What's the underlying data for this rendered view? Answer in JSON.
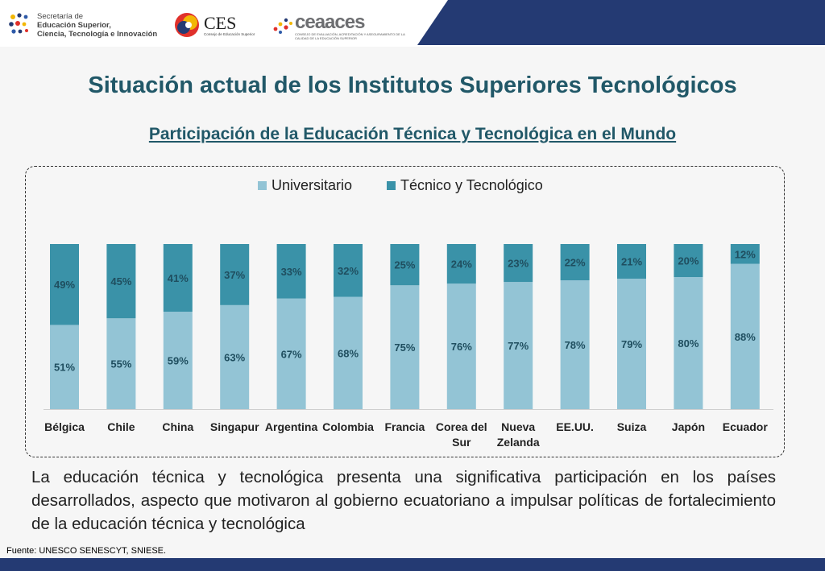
{
  "header": {
    "logo_senescyt": {
      "line1": "Secretaría de",
      "line2": "Educación Superior,",
      "line3": "Ciencia, Tecnología e Innovación"
    },
    "logo_ces": {
      "name": "CES",
      "sub": "Consejo de Educación Superior"
    },
    "logo_ceaaces": {
      "name": "ceaaces",
      "sub": "CONSEJO DE EVALUACIÓN, ACREDITACIÓN Y ASEGURAMIENTO DE LA CALIDAD DE LA EDUCACIÓN SUPERIOR"
    }
  },
  "title": "Situación actual de los Institutos Superiores Tecnológicos",
  "subtitle": "Participación de la Educación Técnica y Tecnológica en el Mundo",
  "chart_data": {
    "type": "bar",
    "stacked": true,
    "categories": [
      "Bélgica",
      "Chile",
      "China",
      "Singapur",
      "Argentina",
      "Colombia",
      "Francia",
      "Corea del Sur",
      "Nueva Zelanda",
      "EE.UU.",
      "Suiza",
      "Japón",
      "Ecuador"
    ],
    "series": [
      {
        "name": "Universitario",
        "values": [
          51,
          55,
          59,
          63,
          67,
          68,
          75,
          76,
          77,
          78,
          79,
          80,
          88
        ],
        "color": "#93c4d5"
      },
      {
        "name": "Técnico y Tecnológico",
        "values": [
          49,
          45,
          41,
          37,
          33,
          32,
          25,
          24,
          23,
          22,
          21,
          20,
          12
        ],
        "color": "#3a92a8"
      }
    ],
    "value_suffix": "%",
    "data_label_color": "#1f4e5f",
    "legend_position": "top",
    "grid": false,
    "ylim": [
      0,
      100
    ]
  },
  "body_text": "La educación técnica y tecnológica presenta una significativa participación en los países desarrollados, aspecto que motivaron al gobierno ecuatoriano a impulsar políticas de fortalecimiento de la educación técnica y tecnológica",
  "source": "Fuente: UNESCO SENESCYT, SNIESE.",
  "colors": {
    "navy": "#243a73",
    "title": "#215868"
  }
}
